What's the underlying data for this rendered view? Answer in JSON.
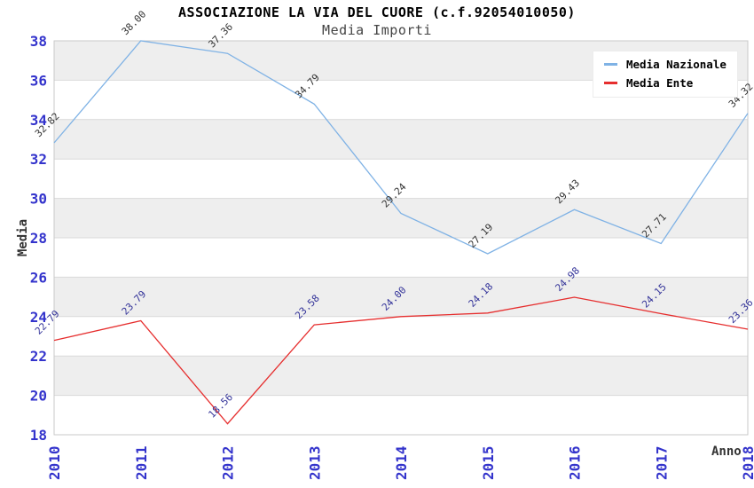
{
  "header": {
    "title": "ASSOCIAZIONE LA VIA DEL CUORE (c.f.92054010050)",
    "subtitle": "Media Importi"
  },
  "chart_data": {
    "type": "line",
    "title": "ASSOCIAZIONE LA VIA DEL CUORE (c.f.92054010050)",
    "subtitle": "Media Importi",
    "xlabel": "Anno",
    "ylabel": "Media",
    "x": [
      "2010",
      "2011",
      "2012",
      "2013",
      "2014",
      "2015",
      "2016",
      "2017",
      "2018"
    ],
    "series": [
      {
        "name": "Media Nazionale",
        "color": "#7fb2e5",
        "label_color": "#333333",
        "values": [
          32.82,
          38.0,
          37.36,
          34.79,
          29.24,
          27.19,
          29.43,
          27.71,
          34.32
        ]
      },
      {
        "name": "Media Ente",
        "color": "#e62e2e",
        "label_color": "#333399",
        "values": [
          22.79,
          23.79,
          18.56,
          23.58,
          24.0,
          24.18,
          24.98,
          24.15,
          23.36
        ]
      }
    ],
    "ylim": [
      18,
      38
    ],
    "ytick_step": 2,
    "yticks": [
      18,
      20,
      22,
      24,
      26,
      28,
      30,
      32,
      34,
      36,
      38
    ],
    "grid": true,
    "legend_position": "top-right",
    "band_colors": [
      "#ffffff",
      "#eeeeee"
    ],
    "gridline_color": "#d9d9d9",
    "border_color": "#c9c9c9",
    "tick_color": "#3434cc",
    "value_decimals": 2
  }
}
